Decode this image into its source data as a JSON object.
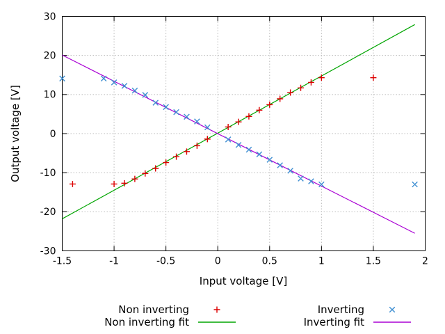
{
  "window": {
    "background": "#ffffff"
  },
  "colors": {
    "non_inverting_points": "#dd0000",
    "non_inverting_fit": "#00a500",
    "inverting_points": "#3f8fd2",
    "inverting_fit": "#aa00d4",
    "grid": "#bbbbbb",
    "axis": "#000000",
    "text": "#000000"
  },
  "chart_data": {
    "type": "scatter",
    "title": "",
    "xlabel": "Input voltage [V]",
    "ylabel": "Output voltage [V]",
    "xlim": [
      -1.5,
      2
    ],
    "ylim": [
      -30,
      30
    ],
    "xticks": {
      "values": [
        -1.5,
        -1,
        -0.5,
        0,
        0.5,
        1,
        1.5,
        2
      ],
      "labels": [
        "-1.5",
        "-1",
        "-0.5",
        "0",
        "0.5",
        "1",
        "1.5",
        "2"
      ]
    },
    "yticks": {
      "values": [
        -30,
        -20,
        -10,
        0,
        10,
        20,
        30
      ],
      "labels": [
        "-30",
        "-20",
        "-10",
        "0",
        "10",
        "20",
        "30"
      ]
    },
    "grid": true,
    "legend_position": "below-chart, two columns",
    "series": [
      {
        "name": "Non inverting",
        "kind": "points",
        "marker": "plus",
        "color": "#dd0000",
        "points": [
          [
            -1.4,
            -12.9
          ],
          [
            -1.0,
            -12.9
          ],
          [
            -0.9,
            -12.7
          ],
          [
            -0.8,
            -11.6
          ],
          [
            -0.7,
            -10.2
          ],
          [
            -0.6,
            -8.9
          ],
          [
            -0.5,
            -7.4
          ],
          [
            -0.4,
            -5.9
          ],
          [
            -0.3,
            -4.6
          ],
          [
            -0.2,
            -3.1
          ],
          [
            -0.1,
            -1.4
          ],
          [
            0.1,
            1.7
          ],
          [
            0.2,
            3.0
          ],
          [
            0.3,
            4.4
          ],
          [
            0.4,
            6.0
          ],
          [
            0.5,
            7.4
          ],
          [
            0.6,
            8.9
          ],
          [
            0.7,
            10.5
          ],
          [
            0.8,
            11.7
          ],
          [
            0.9,
            13.1
          ],
          [
            1.0,
            14.3
          ],
          [
            1.5,
            14.3
          ]
        ]
      },
      {
        "name": "Non inverting fit",
        "kind": "line",
        "color": "#00a500",
        "points": [
          [
            -1.5,
            -21.8
          ],
          [
            1.9,
            27.9
          ]
        ]
      },
      {
        "name": "Inverting",
        "kind": "points",
        "marker": "cross",
        "color": "#3f8fd2",
        "points": [
          [
            -1.5,
            14.1
          ],
          [
            -1.1,
            14.1
          ],
          [
            -1.0,
            13.1
          ],
          [
            -0.9,
            12.2
          ],
          [
            -0.8,
            11.0
          ],
          [
            -0.7,
            9.9
          ],
          [
            -0.6,
            7.9
          ],
          [
            -0.5,
            6.8
          ],
          [
            -0.4,
            5.5
          ],
          [
            -0.3,
            4.3
          ],
          [
            -0.2,
            3.1
          ],
          [
            -0.1,
            1.6
          ],
          [
            0.1,
            -1.5
          ],
          [
            0.2,
            -2.9
          ],
          [
            0.3,
            -4.1
          ],
          [
            0.4,
            -5.3
          ],
          [
            0.5,
            -6.7
          ],
          [
            0.6,
            -8.1
          ],
          [
            0.7,
            -9.5
          ],
          [
            0.8,
            -11.5
          ],
          [
            0.9,
            -12.2
          ],
          [
            1.0,
            -13.0
          ],
          [
            1.9,
            -13.0
          ]
        ]
      },
      {
        "name": "Inverting fit",
        "kind": "line",
        "color": "#aa00d4",
        "points": [
          [
            -1.5,
            20.1
          ],
          [
            1.9,
            -25.5
          ]
        ]
      }
    ]
  }
}
